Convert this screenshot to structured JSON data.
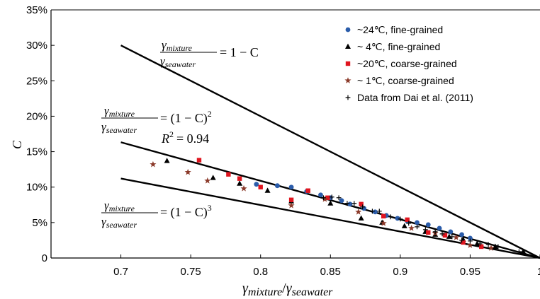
{
  "chart_data": {
    "type": "scatter",
    "title": "",
    "xlabel": {
      "main": "γ",
      "sub1": "mixture",
      "sep": "/",
      "main2": "γ",
      "sub2": "seawater"
    },
    "ylabel": "C",
    "xlim": [
      0.65,
      1.0
    ],
    "ylim": [
      0,
      0.35
    ],
    "xticks": [
      0.7,
      0.75,
      0.8,
      0.85,
      0.9,
      0.95,
      1.0
    ],
    "xtick_labels": [
      "0.7",
      "0.75",
      "0.8",
      "0.85",
      "0.9",
      "0.95",
      "1"
    ],
    "yticks": [
      0,
      0.05,
      0.1,
      0.15,
      0.2,
      0.25,
      0.3,
      0.35
    ],
    "ytick_labels": [
      "0",
      "5%",
      "10%",
      "15%",
      "20%",
      "25%",
      "30%",
      "35%"
    ],
    "grid": false,
    "legend_position": "top-right",
    "lines": [
      {
        "model": "1-C",
        "x": [
          0.7,
          1.0
        ],
        "y": [
          0.3,
          0.0
        ]
      },
      {
        "model": "(1-C)^2",
        "x": [
          0.7,
          1.0
        ],
        "y": [
          0.1633,
          0.0
        ]
      },
      {
        "model": "(1-C)^3",
        "x": [
          0.7,
          1.0
        ],
        "y": [
          0.1121,
          0.0
        ]
      }
    ],
    "annotations": {
      "eq1": {
        "num": "γ",
        "num_sub": "mixture",
        "den": "γ",
        "den_sub": "seawater",
        "rhs": "= 1 − C"
      },
      "eq2": {
        "num": "γ",
        "num_sub": "mixture",
        "den": "γ",
        "den_sub": "seawater",
        "rhs": "= (1 − C)",
        "exp": "2"
      },
      "r2": {
        "label": "R",
        "exp": "2",
        "value": "= 0.94"
      },
      "eq3": {
        "num": "γ",
        "num_sub": "mixture",
        "den": "γ",
        "den_sub": "seawater",
        "rhs": "= (1 − C)",
        "exp": "3"
      }
    },
    "series": [
      {
        "name": "~24℃, fine-grained",
        "marker": "circle",
        "color": "#2a5caa",
        "x": [
          0.797,
          0.812,
          0.822,
          0.833,
          0.843,
          0.85,
          0.858,
          0.864,
          0.874,
          0.882,
          0.89,
          0.898,
          0.905,
          0.912,
          0.92,
          0.928,
          0.936,
          0.944,
          0.95
        ],
        "y": [
          0.104,
          0.102,
          0.1,
          0.094,
          0.089,
          0.085,
          0.081,
          0.076,
          0.07,
          0.065,
          0.06,
          0.056,
          0.052,
          0.05,
          0.047,
          0.042,
          0.037,
          0.033,
          0.028
        ]
      },
      {
        "name": "~ 4℃, fine-grained",
        "marker": "triangle",
        "color": "#000000",
        "x": [
          0.733,
          0.766,
          0.785,
          0.805,
          0.822,
          0.85,
          0.872,
          0.887,
          0.903,
          0.918,
          0.925,
          0.935,
          0.945,
          0.955,
          0.968,
          0.988
        ],
        "y": [
          0.137,
          0.113,
          0.105,
          0.095,
          0.08,
          0.077,
          0.056,
          0.05,
          0.045,
          0.037,
          0.033,
          0.03,
          0.026,
          0.02,
          0.016,
          0.009
        ]
      },
      {
        "name": "~20℃, coarse-grained",
        "marker": "square",
        "color": "#e0141e",
        "x": [
          0.756,
          0.777,
          0.785,
          0.8,
          0.822,
          0.834,
          0.848,
          0.872,
          0.888,
          0.905,
          0.92,
          0.932,
          0.945,
          0.958
        ],
        "y": [
          0.138,
          0.118,
          0.112,
          0.1,
          0.082,
          0.095,
          0.085,
          0.076,
          0.059,
          0.054,
          0.036,
          0.032,
          0.022,
          0.016
        ]
      },
      {
        "name": "~ 1℃, coarse-grained",
        "marker": "star",
        "color": "#8b3a2a",
        "x": [
          0.723,
          0.748,
          0.762,
          0.788,
          0.822,
          0.846,
          0.87,
          0.888,
          0.908,
          0.925,
          0.94,
          0.95,
          0.965
        ],
        "y": [
          0.132,
          0.121,
          0.109,
          0.098,
          0.074,
          0.083,
          0.065,
          0.049,
          0.042,
          0.035,
          0.029,
          0.018,
          0.014
        ]
      },
      {
        "name": "Data from Dai et al. (2011)",
        "marker": "plus",
        "color": "#000000",
        "x": [
          0.845,
          0.851,
          0.856,
          0.862,
          0.867,
          0.873,
          0.88,
          0.885,
          0.893,
          0.9,
          0.906,
          0.912,
          0.918,
          0.925,
          0.93,
          0.937,
          0.944,
          0.95,
          0.957,
          0.963,
          0.97,
          0.985
        ],
        "y": [
          0.085,
          0.086,
          0.085,
          0.077,
          0.077,
          0.072,
          0.066,
          0.066,
          0.058,
          0.055,
          0.049,
          0.044,
          0.04,
          0.037,
          0.034,
          0.03,
          0.025,
          0.024,
          0.02,
          0.019,
          0.016,
          0.009
        ]
      }
    ]
  }
}
